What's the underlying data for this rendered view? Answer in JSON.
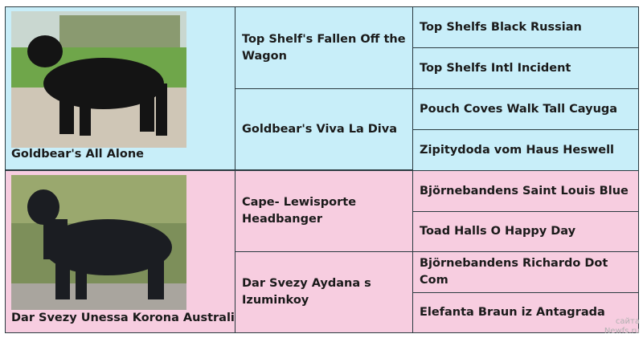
{
  "dogs": [
    {
      "name": "Goldbear's All Alone",
      "parents": [
        {
          "name": "Top Shelf's Fallen Off the Wagon",
          "parents": [
            "Top Shelfs Black Russian",
            "Top Shelfs Intl Incident"
          ]
        },
        {
          "name": "Goldbear's Viva La Diva",
          "parents": [
            "Pouch Coves Walk Tall Cayuga",
            "Zipitydoda vom Haus Heswell"
          ]
        }
      ]
    },
    {
      "name": "Dar Svezy Unessa Korona Australis",
      "parents": [
        {
          "name": "Cape- Lewisporte Headbanger",
          "parents": [
            "Björnebandens Saint Louis Blue",
            "Toad Halls O Happy Day"
          ]
        },
        {
          "name": "Dar Svezy Aydana s Izuminkoy",
          "parents": [
            "Björnebandens Richardo Dot Com",
            "Elefanta Braun iz Antagrada"
          ]
        }
      ]
    }
  ],
  "watermark": {
    "line1": "сайта",
    "line2": "Newfs.ru"
  },
  "colors": {
    "blue": "#c8eef9",
    "pink": "#f7cde0"
  }
}
